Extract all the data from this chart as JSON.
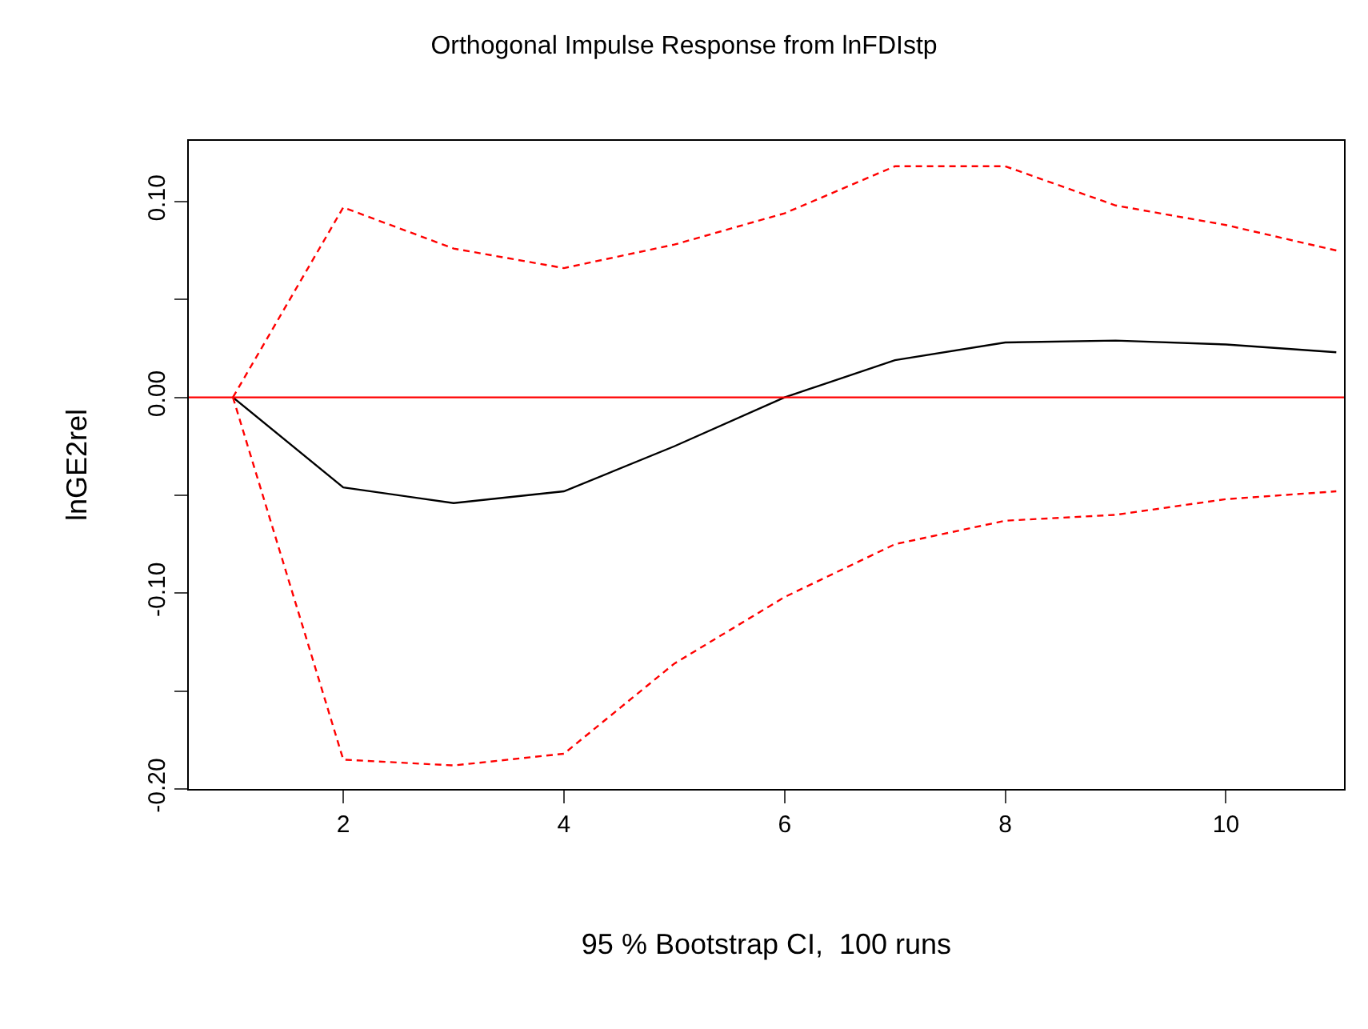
{
  "chart_data": {
    "type": "line",
    "title": "Orthogonal Impulse Response from lnFDIstp",
    "xlabel": "95 % Bootstrap CI,  100 runs",
    "ylabel": "lnGE2rel",
    "x": [
      1,
      2,
      3,
      4,
      5,
      6,
      7,
      8,
      9,
      10,
      11
    ],
    "series": [
      {
        "color": "#000000",
        "line_style": "solid",
        "values": [
          0,
          -0.046,
          -0.054,
          -0.048,
          -0.025,
          0,
          0.019,
          0.028,
          0.029,
          0.027,
          0.023
        ]
      },
      {
        "color": "#ff0000",
        "line_style": "dashed",
        "values": [
          0,
          0.097,
          0.076,
          0.066,
          0.078,
          0.094,
          0.118,
          0.118,
          0.098,
          0.088,
          0.075
        ]
      },
      {
        "color": "#ff0000",
        "line_style": "dashed",
        "values": [
          0,
          -0.185,
          -0.188,
          -0.182,
          -0.136,
          -0.102,
          -0.075,
          -0.063,
          -0.06,
          -0.052,
          -0.048
        ]
      }
    ],
    "xlim": [
      0.6,
      11.07
    ],
    "xticks": [
      2,
      4,
      6,
      8,
      10
    ],
    "ylim": [
      -0.2,
      0.131
    ],
    "yticks": [
      {
        "value": -0.2,
        "label": "-0.20"
      },
      {
        "value": -0.15,
        "label": null
      },
      {
        "value": -0.1,
        "label": "-0.10"
      },
      {
        "value": -0.05,
        "label": null
      },
      {
        "value": 0,
        "label": "0.00"
      },
      {
        "value": 0.05,
        "label": null
      },
      {
        "value": 0.1,
        "label": "0.10"
      }
    ],
    "ref_lines": [
      {
        "axis": "y",
        "value": 0,
        "color": "#ff0000",
        "line_style": "solid"
      }
    ],
    "marker": "none"
  }
}
